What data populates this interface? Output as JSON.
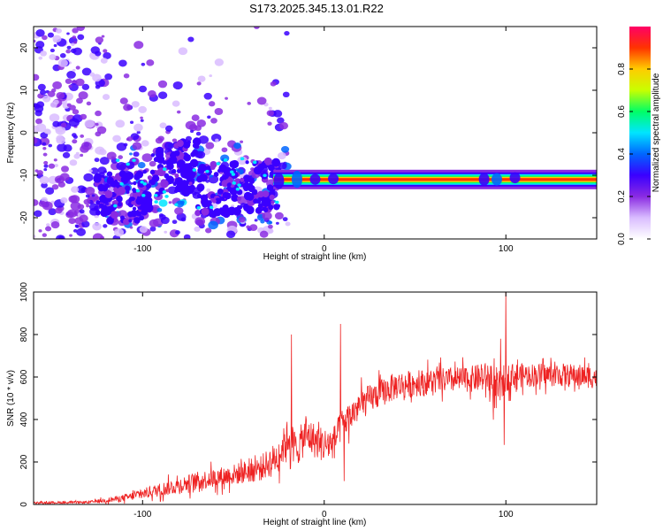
{
  "title": "S173.2025.345.13.01.R22",
  "chart_data": [
    {
      "type": "heatmap",
      "xlabel": "Height of straight line (km)",
      "ylabel": "Frequency (Hz)",
      "xlim": [
        -160,
        150
      ],
      "ylim": [
        -25,
        25
      ],
      "x_ticks": [
        -100,
        0,
        100
      ],
      "y_ticks": [
        -20,
        -10,
        0,
        10,
        20
      ],
      "colorbar": {
        "label": "Normalized spectral amplitude",
        "range": [
          0,
          1
        ],
        "ticks": [
          0.0,
          0.2,
          0.4,
          0.6,
          0.8
        ],
        "tick_labels": [
          "0.0",
          "0.2",
          "0.4",
          "0.6",
          "0.8"
        ],
        "colors": [
          "#ffffff",
          "#d9bcff",
          "#8a2be2",
          "#3a00ff",
          "#0066ff",
          "#00e5ff",
          "#00ff66",
          "#c8ff00",
          "#ffcc00",
          "#ff3300",
          "#ff0066"
        ]
      },
      "features": {
        "tone_frequency_hz": -11,
        "tone_start_km": -28,
        "tone_end_km": 150,
        "noise_region_km": [
          -160,
          -28
        ]
      }
    },
    {
      "type": "line",
      "xlabel": "Height of straight line (km)",
      "ylabel": "SNR (10 * v/v)",
      "xlim": [
        -160,
        150
      ],
      "ylim": [
        0,
        1000
      ],
      "x_ticks": [
        -100,
        0,
        100
      ],
      "y_ticks": [
        0,
        200,
        400,
        600,
        800,
        1000
      ],
      "color": "#ee2222",
      "envelope": {
        "x": [
          -160,
          -130,
          -110,
          -90,
          -70,
          -50,
          -35,
          -25,
          -20,
          -15,
          -10,
          -5,
          0,
          5,
          10,
          15,
          20,
          30,
          40,
          60,
          80,
          90,
          95,
          100,
          110,
          130,
          150
        ],
        "mean": [
          8,
          10,
          30,
          70,
          110,
          140,
          170,
          230,
          320,
          260,
          330,
          300,
          280,
          290,
          380,
          420,
          470,
          520,
          560,
          580,
          590,
          600,
          520,
          600,
          610,
          610,
          600
        ],
        "spread": [
          8,
          10,
          30,
          60,
          80,
          90,
          110,
          140,
          160,
          150,
          160,
          150,
          150,
          140,
          130,
          130,
          130,
          120,
          120,
          110,
          110,
          130,
          180,
          120,
          100,
          100,
          100
        ]
      },
      "spikes": [
        {
          "x": -18,
          "y": 800
        },
        {
          "x": 9,
          "y": 850
        },
        {
          "x": 11,
          "y": 110
        },
        {
          "x": 97,
          "y": 780
        },
        {
          "x": 100,
          "y": 1000
        },
        {
          "x": 99,
          "y": 280
        }
      ]
    }
  ]
}
